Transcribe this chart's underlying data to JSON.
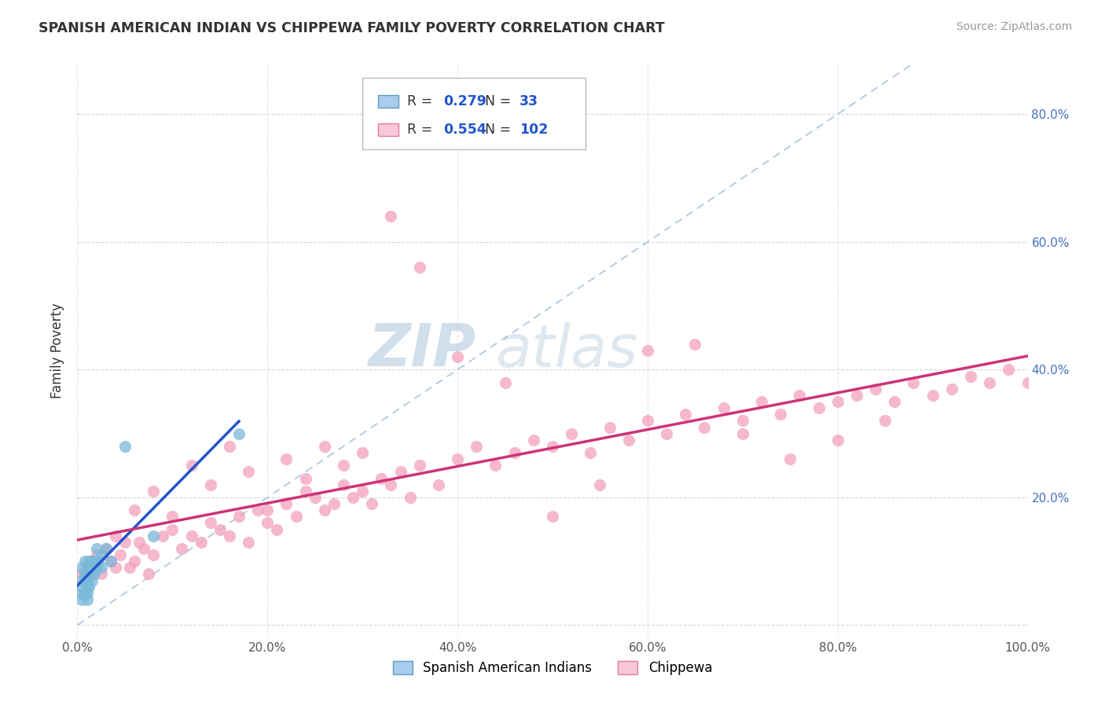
{
  "title": "SPANISH AMERICAN INDIAN VS CHIPPEWA FAMILY POVERTY CORRELATION CHART",
  "source": "Source: ZipAtlas.com",
  "ylabel": "Family Poverty",
  "xlim": [
    0,
    1.0
  ],
  "ylim": [
    -0.02,
    0.88
  ],
  "xticks": [
    0.0,
    0.2,
    0.4,
    0.6,
    0.8,
    1.0
  ],
  "yticks": [
    0.0,
    0.2,
    0.4,
    0.6,
    0.8
  ],
  "xtick_labels": [
    "0.0%",
    "20.0%",
    "40.0%",
    "60.0%",
    "80.0%",
    "100.0%"
  ],
  "ytick_labels": [
    "",
    "20.0%",
    "40.0%",
    "60.0%",
    "80.0%"
  ],
  "legend1_R": "0.279",
  "legend1_N": "33",
  "legend2_R": "0.554",
  "legend2_N": "102",
  "blue_dot_color": "#7ab8d9",
  "blue_dot_edge": "#5a9ec0",
  "pink_dot_color": "#f4a0bc",
  "pink_dot_edge": "#e87aa0",
  "blue_fill": "#aaccee",
  "pink_fill": "#f8c8d8",
  "trend_blue": "#2255cc",
  "trend_pink": "#cc3377",
  "diag_color": "#aac4dd",
  "watermark_color": "#c8d8e8",
  "blue_scatter_x": [
    0.005,
    0.005,
    0.005,
    0.005,
    0.005,
    0.008,
    0.008,
    0.008,
    0.008,
    0.01,
    0.01,
    0.01,
    0.01,
    0.01,
    0.01,
    0.012,
    0.012,
    0.012,
    0.015,
    0.015,
    0.015,
    0.018,
    0.018,
    0.02,
    0.02,
    0.022,
    0.025,
    0.025,
    0.03,
    0.035,
    0.05,
    0.08,
    0.17
  ],
  "blue_scatter_y": [
    0.04,
    0.05,
    0.06,
    0.07,
    0.09,
    0.05,
    0.07,
    0.08,
    0.1,
    0.04,
    0.05,
    0.06,
    0.07,
    0.08,
    0.09,
    0.06,
    0.08,
    0.1,
    0.07,
    0.08,
    0.1,
    0.08,
    0.1,
    0.09,
    0.12,
    0.1,
    0.09,
    0.11,
    0.12,
    0.1,
    0.28,
    0.14,
    0.3
  ],
  "pink_scatter_x": [
    0.005,
    0.01,
    0.015,
    0.02,
    0.025,
    0.03,
    0.035,
    0.04,
    0.045,
    0.05,
    0.055,
    0.06,
    0.065,
    0.07,
    0.075,
    0.08,
    0.09,
    0.1,
    0.11,
    0.12,
    0.13,
    0.14,
    0.15,
    0.16,
    0.17,
    0.18,
    0.19,
    0.2,
    0.21,
    0.22,
    0.23,
    0.24,
    0.25,
    0.26,
    0.27,
    0.28,
    0.29,
    0.3,
    0.31,
    0.32,
    0.33,
    0.34,
    0.35,
    0.36,
    0.38,
    0.4,
    0.42,
    0.44,
    0.46,
    0.48,
    0.5,
    0.52,
    0.54,
    0.56,
    0.58,
    0.6,
    0.62,
    0.64,
    0.66,
    0.68,
    0.7,
    0.72,
    0.74,
    0.76,
    0.78,
    0.8,
    0.82,
    0.84,
    0.86,
    0.88,
    0.9,
    0.92,
    0.94,
    0.96,
    0.98,
    1.0,
    0.04,
    0.06,
    0.08,
    0.1,
    0.12,
    0.14,
    0.16,
    0.18,
    0.2,
    0.22,
    0.24,
    0.26,
    0.28,
    0.3,
    0.33,
    0.36,
    0.4,
    0.45,
    0.5,
    0.55,
    0.6,
    0.65,
    0.7,
    0.75,
    0.8,
    0.85
  ],
  "pink_scatter_y": [
    0.08,
    0.09,
    0.1,
    0.11,
    0.08,
    0.12,
    0.1,
    0.09,
    0.11,
    0.13,
    0.09,
    0.1,
    0.13,
    0.12,
    0.08,
    0.11,
    0.14,
    0.15,
    0.12,
    0.14,
    0.13,
    0.16,
    0.15,
    0.14,
    0.17,
    0.13,
    0.18,
    0.16,
    0.15,
    0.19,
    0.17,
    0.21,
    0.2,
    0.18,
    0.19,
    0.22,
    0.2,
    0.21,
    0.19,
    0.23,
    0.22,
    0.24,
    0.2,
    0.25,
    0.22,
    0.26,
    0.28,
    0.25,
    0.27,
    0.29,
    0.28,
    0.3,
    0.27,
    0.31,
    0.29,
    0.32,
    0.3,
    0.33,
    0.31,
    0.34,
    0.32,
    0.35,
    0.33,
    0.36,
    0.34,
    0.35,
    0.36,
    0.37,
    0.35,
    0.38,
    0.36,
    0.37,
    0.39,
    0.38,
    0.4,
    0.38,
    0.14,
    0.18,
    0.21,
    0.17,
    0.25,
    0.22,
    0.28,
    0.24,
    0.18,
    0.26,
    0.23,
    0.28,
    0.25,
    0.27,
    0.64,
    0.56,
    0.42,
    0.38,
    0.17,
    0.22,
    0.43,
    0.44,
    0.3,
    0.26,
    0.29,
    0.32
  ]
}
